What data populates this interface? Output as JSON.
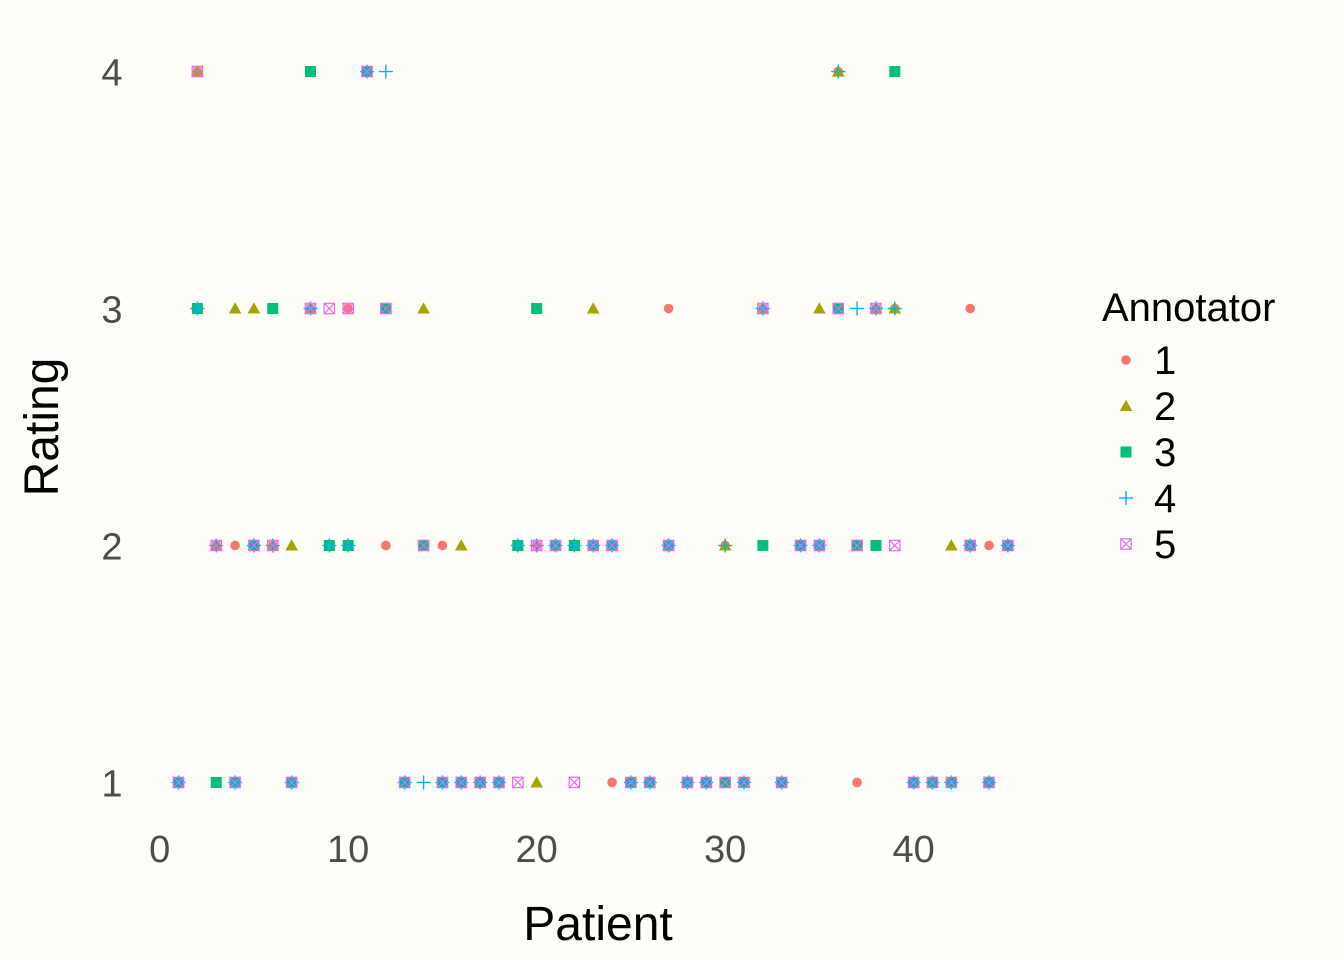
{
  "chart_data": {
    "type": "scatter",
    "xlabel": "Patient",
    "ylabel": "Rating",
    "xlim": [
      -2,
      47.5
    ],
    "ylim": [
      0.85,
      4.15
    ],
    "x_ticks": [
      0,
      10,
      20,
      30,
      40
    ],
    "y_ticks": [
      1,
      2,
      3,
      4
    ],
    "grid": false,
    "background_color": "#FFFDF8",
    "legend": {
      "title": "Annotator",
      "position": "right"
    },
    "series": [
      {
        "name": "1",
        "shape": "circle",
        "color": "#F8766D",
        "points": [
          [
            1,
            1
          ],
          [
            2,
            4
          ],
          [
            3,
            2
          ],
          [
            4,
            2
          ],
          [
            5,
            2
          ],
          [
            6,
            2
          ],
          [
            7,
            1
          ],
          [
            8,
            3
          ],
          [
            9,
            2
          ],
          [
            10,
            3
          ],
          [
            11,
            4
          ],
          [
            12,
            2
          ],
          [
            13,
            1
          ],
          [
            14,
            2
          ],
          [
            15,
            2
          ],
          [
            16,
            1
          ],
          [
            17,
            1
          ],
          [
            18,
            1
          ],
          [
            19,
            2
          ],
          [
            20,
            2
          ],
          [
            21,
            2
          ],
          [
            22,
            2
          ],
          [
            23,
            2
          ],
          [
            24,
            1
          ],
          [
            25,
            1
          ],
          [
            26,
            1
          ],
          [
            27,
            3
          ],
          [
            28,
            1
          ],
          [
            29,
            1
          ],
          [
            30,
            2
          ],
          [
            31,
            1
          ],
          [
            32,
            3
          ],
          [
            33,
            1
          ],
          [
            34,
            2
          ],
          [
            35,
            2
          ],
          [
            36,
            4
          ],
          [
            37,
            1
          ],
          [
            38,
            3
          ],
          [
            39,
            3
          ],
          [
            40,
            1
          ],
          [
            41,
            1
          ],
          [
            42,
            1
          ],
          [
            43,
            3
          ],
          [
            44,
            2
          ],
          [
            45,
            2
          ]
        ]
      },
      {
        "name": "2",
        "shape": "triangle",
        "color": "#A3A500",
        "points": [
          [
            1,
            1
          ],
          [
            2,
            4
          ],
          [
            3,
            2
          ],
          [
            4,
            3
          ],
          [
            5,
            3
          ],
          [
            6,
            2
          ],
          [
            7,
            2
          ],
          [
            8,
            3
          ],
          [
            9,
            2
          ],
          [
            10,
            2
          ],
          [
            11,
            4
          ],
          [
            12,
            3
          ],
          [
            13,
            1
          ],
          [
            14,
            3
          ],
          [
            15,
            1
          ],
          [
            16,
            2
          ],
          [
            17,
            1
          ],
          [
            18,
            1
          ],
          [
            19,
            2
          ],
          [
            20,
            1
          ],
          [
            21,
            2
          ],
          [
            22,
            2
          ],
          [
            23,
            3
          ],
          [
            24,
            2
          ],
          [
            25,
            1
          ],
          [
            26,
            1
          ],
          [
            27,
            2
          ],
          [
            28,
            1
          ],
          [
            29,
            1
          ],
          [
            30,
            2
          ],
          [
            31,
            1
          ],
          [
            32,
            3
          ],
          [
            33,
            1
          ],
          [
            34,
            2
          ],
          [
            35,
            3
          ],
          [
            36,
            4
          ],
          [
            37,
            2
          ],
          [
            38,
            3
          ],
          [
            39,
            3
          ],
          [
            40,
            1
          ],
          [
            41,
            1
          ],
          [
            42,
            2
          ],
          [
            43,
            2
          ],
          [
            44,
            1
          ],
          [
            45,
            2
          ]
        ]
      },
      {
        "name": "3",
        "shape": "square",
        "color": "#00BF7D",
        "points": [
          [
            1,
            1
          ],
          [
            2,
            3
          ],
          [
            3,
            1
          ],
          [
            4,
            1
          ],
          [
            5,
            2
          ],
          [
            6,
            3
          ],
          [
            7,
            1
          ],
          [
            8,
            4
          ],
          [
            9,
            2
          ],
          [
            10,
            2
          ],
          [
            11,
            4
          ],
          [
            12,
            3
          ],
          [
            13,
            1
          ],
          [
            14,
            2
          ],
          [
            15,
            1
          ],
          [
            16,
            1
          ],
          [
            17,
            1
          ],
          [
            18,
            1
          ],
          [
            19,
            2
          ],
          [
            20,
            3
          ],
          [
            21,
            2
          ],
          [
            22,
            2
          ],
          [
            23,
            2
          ],
          [
            24,
            2
          ],
          [
            25,
            1
          ],
          [
            26,
            1
          ],
          [
            27,
            2
          ],
          [
            28,
            1
          ],
          [
            29,
            1
          ],
          [
            30,
            1
          ],
          [
            31,
            1
          ],
          [
            32,
            2
          ],
          [
            33,
            1
          ],
          [
            34,
            2
          ],
          [
            35,
            2
          ],
          [
            36,
            3
          ],
          [
            37,
            2
          ],
          [
            38,
            2
          ],
          [
            39,
            4
          ],
          [
            40,
            1
          ],
          [
            41,
            1
          ],
          [
            42,
            1
          ],
          [
            43,
            2
          ],
          [
            44,
            1
          ],
          [
            45,
            2
          ]
        ]
      },
      {
        "name": "4",
        "shape": "plus",
        "color": "#00B0F6",
        "points": [
          [
            1,
            1
          ],
          [
            2,
            3
          ],
          [
            3,
            2
          ],
          [
            4,
            1
          ],
          [
            5,
            2
          ],
          [
            6,
            2
          ],
          [
            7,
            1
          ],
          [
            8,
            3
          ],
          [
            9,
            2
          ],
          [
            10,
            2
          ],
          [
            11,
            4
          ],
          [
            12,
            4
          ],
          [
            13,
            1
          ],
          [
            14,
            1
          ],
          [
            15,
            1
          ],
          [
            16,
            1
          ],
          [
            17,
            1
          ],
          [
            18,
            1
          ],
          [
            19,
            2
          ],
          [
            20,
            2
          ],
          [
            21,
            2
          ],
          [
            22,
            2
          ],
          [
            23,
            2
          ],
          [
            24,
            2
          ],
          [
            25,
            1
          ],
          [
            26,
            1
          ],
          [
            27,
            2
          ],
          [
            28,
            1
          ],
          [
            29,
            1
          ],
          [
            30,
            2
          ],
          [
            31,
            1
          ],
          [
            32,
            3
          ],
          [
            33,
            1
          ],
          [
            34,
            2
          ],
          [
            35,
            2
          ],
          [
            36,
            4
          ],
          [
            37,
            3
          ],
          [
            38,
            3
          ],
          [
            39,
            3
          ],
          [
            40,
            1
          ],
          [
            41,
            1
          ],
          [
            42,
            1
          ],
          [
            43,
            2
          ],
          [
            44,
            1
          ],
          [
            45,
            2
          ]
        ]
      },
      {
        "name": "5",
        "shape": "square-x",
        "color": "#E76BF3",
        "points": [
          [
            1,
            1
          ],
          [
            2,
            4
          ],
          [
            3,
            2
          ],
          [
            4,
            1
          ],
          [
            5,
            2
          ],
          [
            6,
            2
          ],
          [
            7,
            1
          ],
          [
            8,
            3
          ],
          [
            9,
            3
          ],
          [
            10,
            3
          ],
          [
            11,
            4
          ],
          [
            12,
            3
          ],
          [
            13,
            1
          ],
          [
            14,
            2
          ],
          [
            15,
            1
          ],
          [
            16,
            1
          ],
          [
            17,
            1
          ],
          [
            18,
            1
          ],
          [
            19,
            1
          ],
          [
            20,
            2
          ],
          [
            21,
            2
          ],
          [
            22,
            1
          ],
          [
            23,
            2
          ],
          [
            24,
            2
          ],
          [
            25,
            1
          ],
          [
            26,
            1
          ],
          [
            27,
            2
          ],
          [
            28,
            1
          ],
          [
            29,
            1
          ],
          [
            30,
            1
          ],
          [
            31,
            1
          ],
          [
            32,
            3
          ],
          [
            33,
            1
          ],
          [
            34,
            2
          ],
          [
            35,
            2
          ],
          [
            36,
            3
          ],
          [
            37,
            2
          ],
          [
            38,
            3
          ],
          [
            39,
            2
          ],
          [
            40,
            1
          ],
          [
            41,
            1
          ],
          [
            42,
            1
          ],
          [
            43,
            2
          ],
          [
            44,
            1
          ],
          [
            45,
            2
          ]
        ]
      }
    ]
  }
}
